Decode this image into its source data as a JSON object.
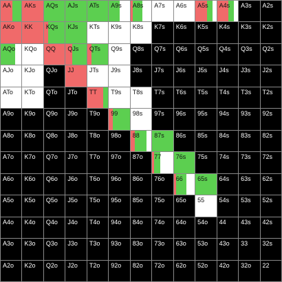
{
  "colors": {
    "raise": "#f06a6a",
    "call": "#5ccf50",
    "empty_dark": "#000000",
    "empty_light": "#ffffff",
    "grid_line": "#8a8a8a"
  },
  "cells": [
    {
      "label": "AA",
      "raise": 0.55,
      "call": 0.45,
      "bg": "white"
    },
    {
      "label": "AKs",
      "raise": 1.0,
      "call": 0,
      "bg": "white"
    },
    {
      "label": "AQs",
      "raise": 0,
      "call": 1.0,
      "bg": "white"
    },
    {
      "label": "AJs",
      "raise": 0,
      "call": 1.0,
      "bg": "white"
    },
    {
      "label": "ATs",
      "raise": 0,
      "call": 1.0,
      "bg": "white"
    },
    {
      "label": "A9s",
      "raise": 0,
      "call": 0.5,
      "bg": "white"
    },
    {
      "label": "A8s",
      "raise": 0.1,
      "call": 0.45,
      "bg": "white"
    },
    {
      "label": "A7s",
      "raise": 0,
      "call": 0,
      "bg": "white"
    },
    {
      "label": "A6s",
      "raise": 0,
      "call": 0,
      "bg": "white"
    },
    {
      "label": "A5s",
      "raise": 0.55,
      "call": 0.25,
      "bg": "white"
    },
    {
      "label": "A4s",
      "raise": 0.55,
      "call": 0.25,
      "bg": "white"
    },
    {
      "label": "A3s",
      "raise": 0,
      "call": 0,
      "bg": "black"
    },
    {
      "label": "A2s",
      "raise": 0,
      "call": 0,
      "bg": "black"
    },
    {
      "label": "AKo",
      "raise": 1.0,
      "call": 0,
      "bg": "white"
    },
    {
      "label": "KK",
      "raise": 1.0,
      "call": 0,
      "bg": "white"
    },
    {
      "label": "KQs",
      "raise": 0.2,
      "call": 0.8,
      "bg": "white"
    },
    {
      "label": "KJs",
      "raise": 0,
      "call": 1.0,
      "bg": "white"
    },
    {
      "label": "KTs",
      "raise": 0,
      "call": 0,
      "bg": "white"
    },
    {
      "label": "K9s",
      "raise": 0,
      "call": 0,
      "bg": "white"
    },
    {
      "label": "K8s",
      "raise": 0,
      "call": 0,
      "bg": "white"
    },
    {
      "label": "K7s",
      "raise": 0,
      "call": 0,
      "bg": "black"
    },
    {
      "label": "K6s",
      "raise": 0,
      "call": 0,
      "bg": "black"
    },
    {
      "label": "K5s",
      "raise": 0,
      "call": 0,
      "bg": "black"
    },
    {
      "label": "K4s",
      "raise": 0,
      "call": 0,
      "bg": "black"
    },
    {
      "label": "K3s",
      "raise": 0,
      "call": 0,
      "bg": "black"
    },
    {
      "label": "K2s",
      "raise": 0,
      "call": 0,
      "bg": "black"
    },
    {
      "label": "AQo",
      "raise": 0,
      "call": 0.7,
      "bg": "white"
    },
    {
      "label": "KQo",
      "raise": 0,
      "call": 0,
      "bg": "white"
    },
    {
      "label": "QQ",
      "raise": 1.0,
      "call": 0,
      "bg": "white"
    },
    {
      "label": "QJs",
      "raise": 0.3,
      "call": 0.7,
      "bg": "white"
    },
    {
      "label": "QTs",
      "raise": 0.2,
      "call": 0.8,
      "bg": "white"
    },
    {
      "label": "Q9s",
      "raise": 0,
      "call": 0,
      "bg": "white"
    },
    {
      "label": "Q8s",
      "raise": 0,
      "call": 0,
      "bg": "black"
    },
    {
      "label": "Q7s",
      "raise": 0,
      "call": 0,
      "bg": "black"
    },
    {
      "label": "Q6s",
      "raise": 0,
      "call": 0,
      "bg": "black"
    },
    {
      "label": "Q5s",
      "raise": 0,
      "call": 0,
      "bg": "black"
    },
    {
      "label": "Q4s",
      "raise": 0,
      "call": 0,
      "bg": "black"
    },
    {
      "label": "Q3s",
      "raise": 0,
      "call": 0,
      "bg": "black"
    },
    {
      "label": "Q2s",
      "raise": 0,
      "call": 0,
      "bg": "black"
    },
    {
      "label": "AJo",
      "raise": 0,
      "call": 0,
      "bg": "white"
    },
    {
      "label": "KJo",
      "raise": 0,
      "call": 0,
      "bg": "white"
    },
    {
      "label": "QJo",
      "raise": 0,
      "call": 0,
      "bg": "black"
    },
    {
      "label": "JJ",
      "raise": 1.0,
      "call": 0,
      "bg": "white"
    },
    {
      "label": "JTs",
      "raise": 0,
      "call": 0,
      "bg": "white"
    },
    {
      "label": "J9s",
      "raise": 0,
      "call": 0,
      "bg": "white"
    },
    {
      "label": "J8s",
      "raise": 0,
      "call": 0,
      "bg": "black"
    },
    {
      "label": "J7s",
      "raise": 0,
      "call": 0,
      "bg": "black"
    },
    {
      "label": "J6s",
      "raise": 0,
      "call": 0,
      "bg": "black"
    },
    {
      "label": "J5s",
      "raise": 0,
      "call": 0,
      "bg": "black"
    },
    {
      "label": "J4s",
      "raise": 0,
      "call": 0,
      "bg": "black"
    },
    {
      "label": "J3s",
      "raise": 0,
      "call": 0,
      "bg": "black"
    },
    {
      "label": "J2s",
      "raise": 0,
      "call": 0,
      "bg": "black"
    },
    {
      "label": "ATo",
      "raise": 0,
      "call": 0,
      "bg": "white"
    },
    {
      "label": "KTo",
      "raise": 0,
      "call": 0,
      "bg": "white"
    },
    {
      "label": "QTo",
      "raise": 0,
      "call": 0,
      "bg": "black"
    },
    {
      "label": "JTo",
      "raise": 0,
      "call": 0,
      "bg": "black"
    },
    {
      "label": "TT",
      "raise": 0.75,
      "call": 0.25,
      "bg": "white"
    },
    {
      "label": "T9s",
      "raise": 0,
      "call": 0,
      "bg": "white"
    },
    {
      "label": "T8s",
      "raise": 0,
      "call": 0,
      "bg": "white"
    },
    {
      "label": "T7s",
      "raise": 0,
      "call": 0,
      "bg": "black"
    },
    {
      "label": "T6s",
      "raise": 0,
      "call": 0,
      "bg": "black"
    },
    {
      "label": "T5s",
      "raise": 0,
      "call": 0,
      "bg": "black"
    },
    {
      "label": "T4s",
      "raise": 0,
      "call": 0,
      "bg": "black"
    },
    {
      "label": "T3s",
      "raise": 0,
      "call": 0,
      "bg": "black"
    },
    {
      "label": "T2s",
      "raise": 0,
      "call": 0,
      "bg": "black"
    },
    {
      "label": "A9o",
      "raise": 0,
      "call": 0,
      "bg": "black"
    },
    {
      "label": "K9o",
      "raise": 0,
      "call": 0,
      "bg": "black"
    },
    {
      "label": "Q9o",
      "raise": 0,
      "call": 0,
      "bg": "black"
    },
    {
      "label": "J9o",
      "raise": 0,
      "call": 0,
      "bg": "black"
    },
    {
      "label": "T9o",
      "raise": 0,
      "call": 0,
      "bg": "black"
    },
    {
      "label": "99",
      "raise": 0.2,
      "call": 0.8,
      "bg": "white"
    },
    {
      "label": "98s",
      "raise": 0,
      "call": 0,
      "bg": "white"
    },
    {
      "label": "97s",
      "raise": 0,
      "call": 0,
      "bg": "black"
    },
    {
      "label": "96s",
      "raise": 0,
      "call": 0,
      "bg": "black"
    },
    {
      "label": "95s",
      "raise": 0,
      "call": 0,
      "bg": "black"
    },
    {
      "label": "94s",
      "raise": 0,
      "call": 0,
      "bg": "black"
    },
    {
      "label": "93s",
      "raise": 0,
      "call": 0,
      "bg": "black"
    },
    {
      "label": "92s",
      "raise": 0,
      "call": 0,
      "bg": "black"
    },
    {
      "label": "A8o",
      "raise": 0,
      "call": 0,
      "bg": "black"
    },
    {
      "label": "K8o",
      "raise": 0,
      "call": 0,
      "bg": "black"
    },
    {
      "label": "Q8o",
      "raise": 0,
      "call": 0,
      "bg": "black"
    },
    {
      "label": "J8o",
      "raise": 0,
      "call": 0,
      "bg": "black"
    },
    {
      "label": "T8o",
      "raise": 0,
      "call": 0,
      "bg": "black"
    },
    {
      "label": "98o",
      "raise": 0,
      "call": 0,
      "bg": "black"
    },
    {
      "label": "88",
      "raise": 0.2,
      "call": 0.55,
      "bg": "white"
    },
    {
      "label": "87s",
      "raise": 0,
      "call": 1.0,
      "bg": "white"
    },
    {
      "label": "86s",
      "raise": 0,
      "call": 0,
      "bg": "black"
    },
    {
      "label": "85s",
      "raise": 0,
      "call": 0,
      "bg": "black"
    },
    {
      "label": "84s",
      "raise": 0,
      "call": 0,
      "bg": "black"
    },
    {
      "label": "83s",
      "raise": 0,
      "call": 0,
      "bg": "black"
    },
    {
      "label": "82s",
      "raise": 0,
      "call": 0,
      "bg": "black"
    },
    {
      "label": "A7o",
      "raise": 0,
      "call": 0,
      "bg": "black"
    },
    {
      "label": "K7o",
      "raise": 0,
      "call": 0,
      "bg": "black"
    },
    {
      "label": "Q7o",
      "raise": 0,
      "call": 0,
      "bg": "black"
    },
    {
      "label": "J7o",
      "raise": 0,
      "call": 0,
      "bg": "black"
    },
    {
      "label": "T7o",
      "raise": 0,
      "call": 0,
      "bg": "black"
    },
    {
      "label": "97o",
      "raise": 0,
      "call": 0,
      "bg": "black"
    },
    {
      "label": "87o",
      "raise": 0,
      "call": 0,
      "bg": "black"
    },
    {
      "label": "77",
      "raise": 0.1,
      "call": 0.3,
      "bg": "white"
    },
    {
      "label": "76s",
      "raise": 0,
      "call": 1.0,
      "bg": "white"
    },
    {
      "label": "75s",
      "raise": 0,
      "call": 0,
      "bg": "black"
    },
    {
      "label": "74s",
      "raise": 0,
      "call": 0,
      "bg": "black"
    },
    {
      "label": "73s",
      "raise": 0,
      "call": 0,
      "bg": "black"
    },
    {
      "label": "72s",
      "raise": 0,
      "call": 0,
      "bg": "black"
    },
    {
      "label": "A6o",
      "raise": 0,
      "call": 0,
      "bg": "black"
    },
    {
      "label": "K6o",
      "raise": 0,
      "call": 0,
      "bg": "black"
    },
    {
      "label": "Q6o",
      "raise": 0,
      "call": 0,
      "bg": "black"
    },
    {
      "label": "J6o",
      "raise": 0,
      "call": 0,
      "bg": "black"
    },
    {
      "label": "T6o",
      "raise": 0,
      "call": 0,
      "bg": "black"
    },
    {
      "label": "96o",
      "raise": 0,
      "call": 0,
      "bg": "black"
    },
    {
      "label": "86o",
      "raise": 0,
      "call": 0,
      "bg": "black"
    },
    {
      "label": "76o",
      "raise": 0,
      "call": 0,
      "bg": "black"
    },
    {
      "label": "66",
      "raise": 0.1,
      "call": 0.5,
      "bg": "white"
    },
    {
      "label": "65s",
      "raise": 0,
      "call": 1.0,
      "bg": "white"
    },
    {
      "label": "64s",
      "raise": 0,
      "call": 0,
      "bg": "black"
    },
    {
      "label": "63s",
      "raise": 0,
      "call": 0,
      "bg": "black"
    },
    {
      "label": "62s",
      "raise": 0,
      "call": 0,
      "bg": "black"
    },
    {
      "label": "A5o",
      "raise": 0,
      "call": 0,
      "bg": "black"
    },
    {
      "label": "K5o",
      "raise": 0,
      "call": 0,
      "bg": "black"
    },
    {
      "label": "Q5o",
      "raise": 0,
      "call": 0,
      "bg": "black"
    },
    {
      "label": "J5o",
      "raise": 0,
      "call": 0,
      "bg": "black"
    },
    {
      "label": "T5o",
      "raise": 0,
      "call": 0,
      "bg": "black"
    },
    {
      "label": "95o",
      "raise": 0,
      "call": 0,
      "bg": "black"
    },
    {
      "label": "85o",
      "raise": 0,
      "call": 0,
      "bg": "black"
    },
    {
      "label": "75o",
      "raise": 0,
      "call": 0,
      "bg": "black"
    },
    {
      "label": "65o",
      "raise": 0,
      "call": 0,
      "bg": "black"
    },
    {
      "label": "55",
      "raise": 0,
      "call": 0,
      "bg": "white"
    },
    {
      "label": "54s",
      "raise": 0,
      "call": 0,
      "bg": "black"
    },
    {
      "label": "53s",
      "raise": 0,
      "call": 0,
      "bg": "black"
    },
    {
      "label": "52s",
      "raise": 0,
      "call": 0,
      "bg": "black"
    },
    {
      "label": "A4o",
      "raise": 0,
      "call": 0,
      "bg": "black"
    },
    {
      "label": "K4o",
      "raise": 0,
      "call": 0,
      "bg": "black"
    },
    {
      "label": "Q4o",
      "raise": 0,
      "call": 0,
      "bg": "black"
    },
    {
      "label": "J4o",
      "raise": 0,
      "call": 0,
      "bg": "black"
    },
    {
      "label": "T4o",
      "raise": 0,
      "call": 0,
      "bg": "black"
    },
    {
      "label": "94o",
      "raise": 0,
      "call": 0,
      "bg": "black"
    },
    {
      "label": "84o",
      "raise": 0,
      "call": 0,
      "bg": "black"
    },
    {
      "label": "74o",
      "raise": 0,
      "call": 0,
      "bg": "black"
    },
    {
      "label": "64o",
      "raise": 0,
      "call": 0,
      "bg": "black"
    },
    {
      "label": "54o",
      "raise": 0,
      "call": 0,
      "bg": "black"
    },
    {
      "label": "44",
      "raise": 0,
      "call": 0,
      "bg": "black"
    },
    {
      "label": "43s",
      "raise": 0,
      "call": 0,
      "bg": "black"
    },
    {
      "label": "42s",
      "raise": 0,
      "call": 0,
      "bg": "black"
    },
    {
      "label": "A3o",
      "raise": 0,
      "call": 0,
      "bg": "black"
    },
    {
      "label": "K3o",
      "raise": 0,
      "call": 0,
      "bg": "black"
    },
    {
      "label": "Q3o",
      "raise": 0,
      "call": 0,
      "bg": "black"
    },
    {
      "label": "J3o",
      "raise": 0,
      "call": 0,
      "bg": "black"
    },
    {
      "label": "T3o",
      "raise": 0,
      "call": 0,
      "bg": "black"
    },
    {
      "label": "93o",
      "raise": 0,
      "call": 0,
      "bg": "black"
    },
    {
      "label": "83o",
      "raise": 0,
      "call": 0,
      "bg": "black"
    },
    {
      "label": "73o",
      "raise": 0,
      "call": 0,
      "bg": "black"
    },
    {
      "label": "63o",
      "raise": 0,
      "call": 0,
      "bg": "black"
    },
    {
      "label": "53o",
      "raise": 0,
      "call": 0,
      "bg": "black"
    },
    {
      "label": "43o",
      "raise": 0,
      "call": 0,
      "bg": "black"
    },
    {
      "label": "33",
      "raise": 0,
      "call": 0,
      "bg": "black"
    },
    {
      "label": "32s",
      "raise": 0,
      "call": 0,
      "bg": "black"
    },
    {
      "label": "A2o",
      "raise": 0,
      "call": 0,
      "bg": "black"
    },
    {
      "label": "K2o",
      "raise": 0,
      "call": 0,
      "bg": "black"
    },
    {
      "label": "Q2o",
      "raise": 0,
      "call": 0,
      "bg": "black"
    },
    {
      "label": "J2o",
      "raise": 0,
      "call": 0,
      "bg": "black"
    },
    {
      "label": "T2o",
      "raise": 0,
      "call": 0,
      "bg": "black"
    },
    {
      "label": "92o",
      "raise": 0,
      "call": 0,
      "bg": "black"
    },
    {
      "label": "82o",
      "raise": 0,
      "call": 0,
      "bg": "black"
    },
    {
      "label": "72o",
      "raise": 0,
      "call": 0,
      "bg": "black"
    },
    {
      "label": "62o",
      "raise": 0,
      "call": 0,
      "bg": "black"
    },
    {
      "label": "52o",
      "raise": 0,
      "call": 0,
      "bg": "black"
    },
    {
      "label": "42o",
      "raise": 0,
      "call": 0,
      "bg": "black"
    },
    {
      "label": "32o",
      "raise": 0,
      "call": 0,
      "bg": "black"
    },
    {
      "label": "22",
      "raise": 0,
      "call": 0,
      "bg": "black"
    }
  ]
}
